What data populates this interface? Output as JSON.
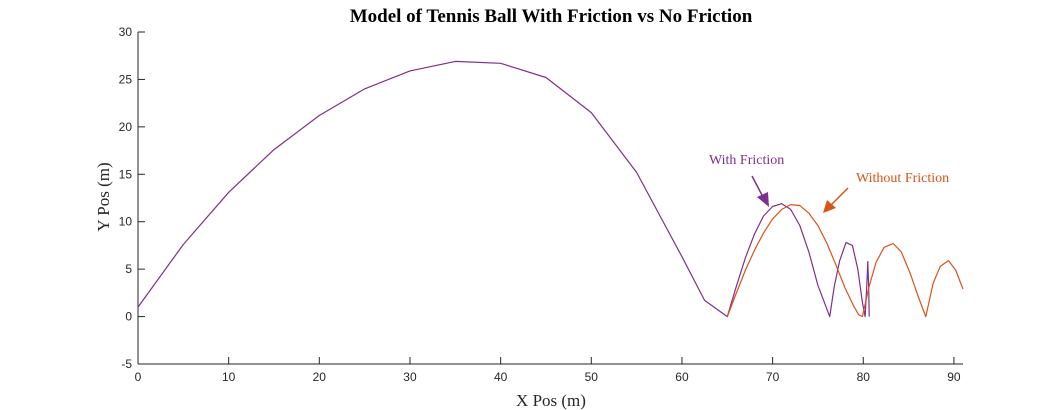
{
  "chart_data": {
    "type": "line",
    "title": "Model of Tennis Ball With Friction vs No Friction",
    "xlabel": "X Pos (m)",
    "ylabel": "Y Pos (m)",
    "xlim": [
      0,
      91
    ],
    "ylim": [
      -5,
      30
    ],
    "xticks": [
      0,
      10,
      20,
      30,
      40,
      50,
      60,
      70,
      80,
      90
    ],
    "yticks": [
      -5,
      0,
      5,
      10,
      15,
      20,
      25,
      30
    ],
    "grid": false,
    "series": [
      {
        "color": "#7e2f8e",
        "x": [
          0,
          5,
          10,
          15,
          20,
          25,
          30,
          35,
          40,
          45,
          50,
          55,
          60,
          62.5,
          65,
          66,
          67,
          68,
          69,
          70,
          71,
          72,
          73,
          74,
          75,
          76.3,
          76.8,
          77.4,
          78.1,
          78.8,
          79.4,
          79.9,
          80.2,
          80.4,
          80.5,
          80.6,
          80.65
        ],
        "y": [
          1,
          7.6,
          13.1,
          17.6,
          21.2,
          24,
          25.9,
          26.9,
          26.7,
          25.2,
          21.5,
          15.2,
          6.3,
          1.7,
          0,
          3.2,
          6.2,
          8.7,
          10.6,
          11.6,
          11.9,
          11.3,
          9.6,
          6.8,
          3.3,
          0,
          3.2,
          5.9,
          7.8,
          7.5,
          5,
          1.5,
          0,
          3.5,
          5.8,
          3.0,
          0
        ]
      },
      {
        "color": "#d95319",
        "x": [
          65,
          66,
          67,
          68,
          69,
          70,
          71,
          72,
          73,
          74,
          75,
          76,
          77,
          78,
          79,
          79.5,
          79.9,
          80.6,
          81.4,
          82.3,
          83.3,
          84.2,
          85.2,
          86.1,
          86.9,
          87.7,
          88.5,
          89.4,
          90.2,
          91
        ],
        "y": [
          0,
          2.5,
          4.9,
          7,
          8.8,
          10.3,
          11.3,
          11.8,
          11.7,
          10.9,
          9.6,
          7.7,
          5.4,
          3,
          1,
          0.2,
          0,
          3,
          5.7,
          7.3,
          7.7,
          6.8,
          4.5,
          2,
          0,
          3.5,
          5.3,
          5.9,
          4.9,
          2.9
        ]
      }
    ],
    "annotations": [
      {
        "text": "With Friction",
        "color": "#7e2f8e"
      },
      {
        "text": "Without Friction",
        "color": "#d95319"
      }
    ]
  }
}
